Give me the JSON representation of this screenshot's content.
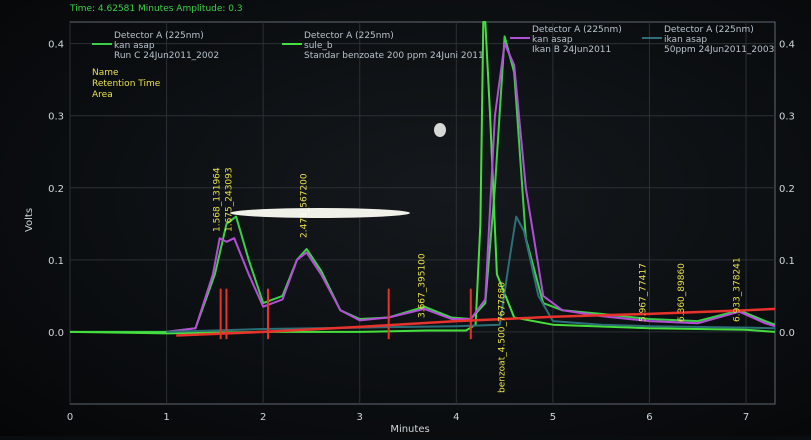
{
  "window": {
    "status_line": "Time: 4.62581 Minutes  Amplitude: 0.3"
  },
  "info_box": [
    "Name",
    "Retention Time",
    "Area"
  ],
  "legend": [
    {
      "detector": "Detector A (225nm)",
      "method": "kan asap",
      "file": "Run C 24Jun2011_2002",
      "color": "#3ecf4a"
    },
    {
      "detector": "Detector A (225nm)",
      "method": "sule_b",
      "file": "Standar benzoate 200 ppm 24Juni 2011",
      "color": "#45e03c"
    },
    {
      "detector": "Detector A (225nm)",
      "method": "kan asap",
      "file": "Ikan B 24Jun2011",
      "color": "#b34fd6"
    },
    {
      "detector": "Detector A (225nm)",
      "method": "ikan asap",
      "file": "50ppm 24Jun2011_2003",
      "color": "#2c6f78"
    }
  ],
  "chart_data": {
    "type": "line",
    "title": "",
    "xlabel": "Minutes",
    "ylabel": "Volts",
    "xlim": [
      0,
      7.3
    ],
    "ylim": [
      -0.1,
      0.43
    ],
    "x_ticks": [
      "0",
      "1",
      "2",
      "3",
      "4",
      "5",
      "6",
      "7"
    ],
    "y_ticks_left": [
      "0.0",
      "0.1",
      "0.2",
      "0.3",
      "0.4"
    ],
    "y_ticks_right": [
      "0.0",
      "0.1",
      "0.2",
      "0.3",
      "0.4"
    ],
    "series": [
      {
        "name": "kan asap",
        "color": "#3ecf4a",
        "x": [
          0,
          1.0,
          1.3,
          1.5,
          1.62,
          1.72,
          1.85,
          2.0,
          2.2,
          2.35,
          2.45,
          2.6,
          2.8,
          3.0,
          3.3,
          3.67,
          3.95,
          4.15,
          4.3,
          4.4,
          4.5,
          4.6,
          4.72,
          4.9,
          5.1,
          5.5,
          6.0,
          6.5,
          6.93,
          7.2,
          7.3
        ],
        "y": [
          0,
          0.0,
          0.005,
          0.08,
          0.15,
          0.16,
          0.1,
          0.04,
          0.05,
          0.1,
          0.115,
          0.085,
          0.03,
          0.018,
          0.02,
          0.035,
          0.02,
          0.018,
          0.04,
          0.2,
          0.41,
          0.36,
          0.13,
          0.04,
          0.03,
          0.025,
          0.018,
          0.015,
          0.03,
          0.015,
          0.01
        ]
      },
      {
        "name": "sule_b",
        "color": "#45e03c",
        "x": [
          0,
          1.0,
          2.0,
          2.7,
          3.0,
          3.7,
          4.1,
          4.2,
          4.25,
          4.28,
          4.3,
          4.35,
          4.42,
          4.6,
          5.0,
          6.0,
          7.0,
          7.3
        ],
        "y": [
          0.0,
          -0.002,
          0.0,
          0.0,
          0.0,
          0.002,
          0.002,
          0.01,
          0.15,
          0.43,
          0.43,
          0.3,
          0.08,
          0.02,
          0.01,
          0.005,
          0.003,
          0.0
        ]
      },
      {
        "name": "kan asap",
        "color": "#b34fd6",
        "x": [
          1.0,
          1.3,
          1.48,
          1.55,
          1.62,
          1.7,
          1.85,
          2.0,
          2.2,
          2.35,
          2.45,
          2.6,
          2.8,
          3.0,
          3.3,
          3.67,
          3.95,
          4.15,
          4.3,
          4.4,
          4.5,
          4.6,
          4.72,
          4.9,
          5.1,
          5.5,
          6.0,
          6.5,
          6.93,
          7.2,
          7.3
        ],
        "y": [
          0.0,
          0.005,
          0.08,
          0.13,
          0.125,
          0.13,
          0.08,
          0.035,
          0.045,
          0.1,
          0.11,
          0.08,
          0.03,
          0.016,
          0.02,
          0.032,
          0.018,
          0.018,
          0.045,
          0.3,
          0.4,
          0.37,
          0.2,
          0.05,
          0.03,
          0.022,
          0.015,
          0.012,
          0.028,
          0.012,
          0.008
        ]
      },
      {
        "name": "ikan asap",
        "color": "#2c6f78",
        "x": [
          1.0,
          1.5,
          2.0,
          3.0,
          4.0,
          4.45,
          4.55,
          4.62,
          4.7,
          4.85,
          5.0,
          5.5,
          6.0,
          7.0,
          7.3
        ],
        "y": [
          0.0,
          0.002,
          0.004,
          0.006,
          0.008,
          0.01,
          0.1,
          0.16,
          0.14,
          0.05,
          0.015,
          0.01,
          0.008,
          0.006,
          0.005
        ]
      },
      {
        "name": "",
        "color": "#e8322c",
        "x": [
          1.1,
          2.0,
          3.0,
          4.0,
          4.5,
          5.0,
          6.0,
          7.0,
          7.3
        ],
        "y": [
          -0.005,
          0.0,
          0.007,
          0.015,
          0.018,
          0.021,
          0.025,
          0.03,
          0.032
        ]
      }
    ],
    "peak_labels": [
      {
        "x": 1.55,
        "text": "1.568_131964"
      },
      {
        "x": 1.67,
        "text": "1.675_243093"
      },
      {
        "x": 2.45,
        "text": "2.479_567200"
      },
      {
        "x": 3.67,
        "text": "3.667_395100"
      },
      {
        "x": 4.5,
        "text": "benzoat_4.500_7677680"
      },
      {
        "x": 5.96,
        "text": "5.967_77417"
      },
      {
        "x": 6.36,
        "text": "6.360_89860"
      },
      {
        "x": 6.93,
        "text": "6.933_378241"
      }
    ]
  }
}
